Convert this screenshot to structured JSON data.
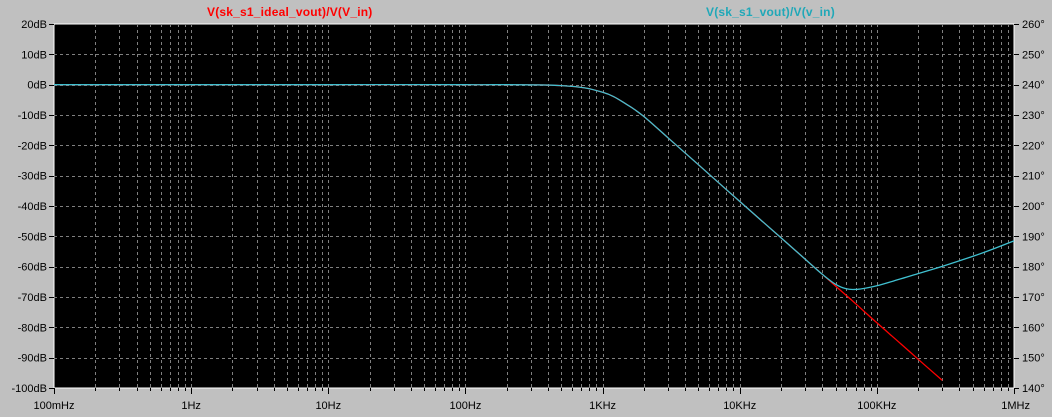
{
  "chart_data": {
    "type": "line",
    "xscale": "log",
    "xlim": [
      0.1,
      1000000
    ],
    "ylim_left": [
      -100,
      20
    ],
    "ylim_right": [
      140,
      260
    ],
    "x_ticks": [
      {
        "value": 0.1,
        "label": "100mHz"
      },
      {
        "value": 1,
        "label": "1Hz"
      },
      {
        "value": 10,
        "label": "10Hz"
      },
      {
        "value": 100,
        "label": "100Hz"
      },
      {
        "value": 1000,
        "label": "1KHz"
      },
      {
        "value": 10000,
        "label": "10KHz"
      },
      {
        "value": 100000,
        "label": "100KHz"
      },
      {
        "value": 1000000,
        "label": "1MHz"
      }
    ],
    "y_left_ticks": [
      {
        "value": 20,
        "label": "20dB"
      },
      {
        "value": 10,
        "label": "10dB"
      },
      {
        "value": 0,
        "label": "0dB"
      },
      {
        "value": -10,
        "label": "-10dB"
      },
      {
        "value": -20,
        "label": "-20dB"
      },
      {
        "value": -30,
        "label": "-30dB"
      },
      {
        "value": -40,
        "label": "-40dB"
      },
      {
        "value": -50,
        "label": "-50dB"
      },
      {
        "value": -60,
        "label": "-60dB"
      },
      {
        "value": -70,
        "label": "-70dB"
      },
      {
        "value": -80,
        "label": "-80dB"
      },
      {
        "value": -90,
        "label": "-90dB"
      },
      {
        "value": -100,
        "label": "-100dB"
      }
    ],
    "y_right_ticks": [
      {
        "value": 260,
        "label": "260°"
      },
      {
        "value": 250,
        "label": "250°"
      },
      {
        "value": 240,
        "label": "240°"
      },
      {
        "value": 230,
        "label": "230°"
      },
      {
        "value": 220,
        "label": "220°"
      },
      {
        "value": 210,
        "label": "210°"
      },
      {
        "value": 200,
        "label": "200°"
      },
      {
        "value": 190,
        "label": "190°"
      },
      {
        "value": 180,
        "label": "180°"
      },
      {
        "value": 170,
        "label": "170°"
      },
      {
        "value": 160,
        "label": "160°"
      },
      {
        "value": 150,
        "label": "150°"
      },
      {
        "value": 140,
        "label": "140°"
      }
    ],
    "grid": true,
    "series": [
      {
        "name": "V(sk_s1_ideal_vout)/V(V_in)",
        "color": "#ff0000",
        "x": [
          0.1,
          1,
          10,
          100,
          500,
          1000,
          1500,
          2000,
          3000,
          5000,
          10000,
          20000,
          30000,
          40000,
          50000,
          60000,
          70000,
          100000,
          150000,
          200000,
          300000
        ],
        "y": [
          0,
          0,
          0,
          0,
          -0.3,
          -2.5,
          -6.5,
          -10.5,
          -17.5,
          -26.4,
          -38.5,
          -50.5,
          -57.5,
          -62.5,
          -66.4,
          -69.5,
          -72.2,
          -78.5,
          -85.5,
          -90.5,
          -97.5
        ]
      },
      {
        "name": "V(sk_s1_vout)/V(v_in)",
        "color": "#40c0d0",
        "x": [
          0.1,
          1,
          10,
          100,
          500,
          1000,
          1500,
          2000,
          3000,
          5000,
          10000,
          20000,
          30000,
          40000,
          50000,
          60000,
          70000,
          80000,
          100000,
          150000,
          200000,
          300000,
          500000,
          700000,
          1000000
        ],
        "y": [
          0,
          0,
          0,
          0,
          -0.3,
          -2.5,
          -6.5,
          -10.5,
          -17.5,
          -26.4,
          -38.5,
          -50.5,
          -57.5,
          -62.5,
          -65.8,
          -67.3,
          -67.5,
          -67.2,
          -66.3,
          -64.0,
          -62.3,
          -59.9,
          -56.6,
          -54.2,
          -51.5
        ]
      }
    ]
  }
}
